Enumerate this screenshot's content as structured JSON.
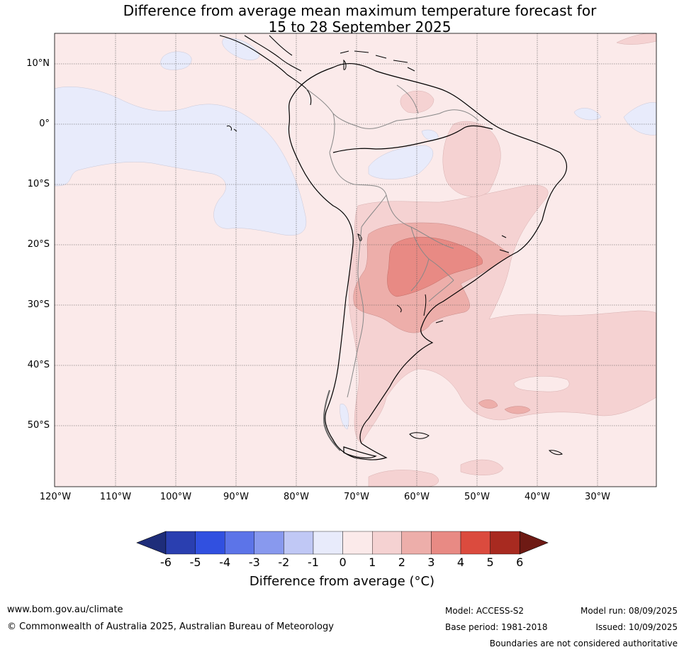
{
  "title_line1": "Difference from average mean maximum temperature forecast for",
  "title_line2": "15 to 28 September 2025",
  "lat_labels": [
    "10°N",
    "0°",
    "10°S",
    "20°S",
    "30°S",
    "40°S",
    "50°S"
  ],
  "lon_labels": [
    "120°W",
    "110°W",
    "100°W",
    "90°W",
    "80°W",
    "70°W",
    "60°W",
    "50°W",
    "40°W",
    "30°W"
  ],
  "colorbar": {
    "ticks": [
      "-6",
      "-5",
      "-4",
      "-3",
      "-2",
      "-1",
      "0",
      "1",
      "2",
      "3",
      "4",
      "5",
      "6"
    ],
    "colors": [
      "#2a3fb0",
      "#3150e0",
      "#5c74e8",
      "#8899ee",
      "#c0c8f5",
      "#e8ebfb",
      "#fbeaea",
      "#f5d2d2",
      "#edaeaa",
      "#e88a84",
      "#db4b3e",
      "#a82a20"
    ],
    "low_extend_color": "#1e2d7a",
    "high_extend_color": "#6e1a14",
    "label": "Difference from average (°C)"
  },
  "footer": {
    "website": "www.bom.gov.au/climate",
    "copyright": "© Commonwealth of Australia 2025, Australian Bureau of Meteorology",
    "model": "Model: ACCESS-S2",
    "base_period": "Base period: 1981-2018",
    "model_run": "Model run: 08/09/2025",
    "issued": "Issued: 10/09/2025",
    "disclaimer": "Boundaries are not considered authoritative"
  }
}
